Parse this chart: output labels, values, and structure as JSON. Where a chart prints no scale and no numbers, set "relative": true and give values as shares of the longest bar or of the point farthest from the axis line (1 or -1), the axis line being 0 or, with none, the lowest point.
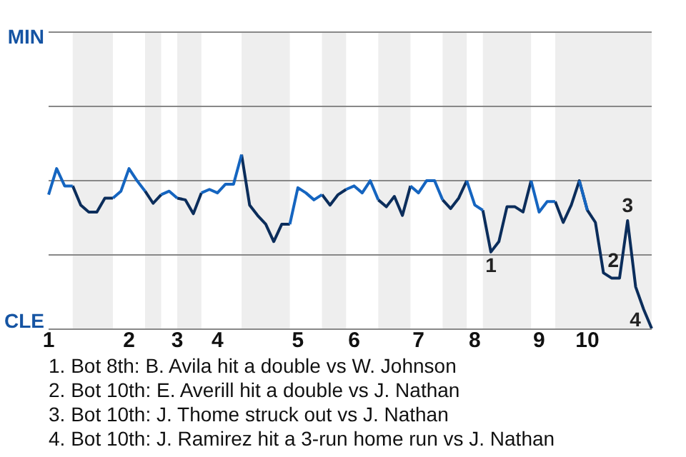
{
  "chart_data": {
    "type": "line",
    "relative": true,
    "categories": [
      "1",
      null,
      null,
      null,
      null,
      null,
      null,
      null,
      null,
      null,
      "2",
      null,
      null,
      null,
      null,
      null,
      "3",
      null,
      null,
      null,
      null,
      "4",
      null,
      null,
      null,
      null,
      null,
      null,
      null,
      null,
      null,
      "5",
      null,
      null,
      null,
      null,
      null,
      null,
      "6",
      null,
      null,
      null,
      null,
      null,
      null,
      null,
      "7",
      null,
      null,
      null,
      null,
      null,
      null,
      "8",
      null,
      null,
      null,
      null,
      null,
      null,
      null,
      "9",
      null,
      null,
      null,
      null,
      null,
      "10",
      null,
      null,
      null,
      null,
      null,
      null,
      null,
      null
    ],
    "legend": false,
    "marker": "none",
    "line_style": "solid",
    "series": [
      {
        "color": "#1565c0",
        "values": [
          0.77,
          0.92,
          0.82,
          0.82,
          null,
          null,
          null,
          null,
          0.75,
          0.79,
          0.92,
          0.85,
          0.79,
          null,
          0.77,
          0.79,
          0.75,
          null,
          null,
          0.78,
          0.8,
          0.78,
          0.83,
          0.83,
          1,
          null,
          null,
          null,
          null,
          null,
          0.6,
          0.81,
          0.78,
          0.74,
          0.77,
          null,
          null,
          0.8,
          0.82,
          0.78,
          0.85,
          0.74,
          null,
          null,
          null,
          0.82,
          0.78,
          0.85,
          0.85,
          0.74,
          null,
          null,
          0.85,
          0.71,
          0.68,
          null,
          null,
          null,
          null,
          null,
          0.85,
          0.67,
          0.73,
          0.73,
          null,
          null,
          0.85,
          0.68,
          null,
          null,
          null,
          null,
          null,
          null,
          null,
          null
        ]
      },
      {
        "color": "#0b2d5b",
        "values": [
          null,
          null,
          null,
          0.82,
          0.71,
          0.67,
          0.67,
          0.75,
          0.75,
          null,
          null,
          null,
          0.79,
          0.72,
          0.77,
          null,
          0.75,
          0.74,
          0.66,
          0.78,
          null,
          null,
          null,
          null,
          1,
          0.71,
          0.65,
          0.6,
          0.5,
          0.6,
          0.6,
          null,
          null,
          null,
          0.77,
          0.71,
          0.77,
          0.8,
          null,
          null,
          null,
          0.74,
          0.7,
          0.76,
          0.65,
          0.82,
          null,
          null,
          null,
          0.74,
          0.69,
          0.75,
          0.85,
          null,
          0.68,
          0.44,
          0.5,
          0.7,
          0.7,
          0.67,
          0.85,
          null,
          null,
          0.73,
          0.61,
          0.71,
          0.85,
          0.68,
          0.61,
          0.32,
          0.29,
          0.29,
          0.62,
          0.24,
          0.11,
          0
        ]
      }
    ],
    "ref_lines": [
      {
        "axis": "y",
        "value": 0,
        "label": "CLE",
        "color": "#888888"
      },
      {
        "axis": "y",
        "value": 0.427,
        "label": null,
        "color": "#888888"
      },
      {
        "axis": "y",
        "value": 0.855,
        "label": null,
        "color": "#888888"
      },
      {
        "axis": "y",
        "value": 1.282,
        "label": null,
        "color": "#888888"
      },
      {
        "axis": "y",
        "value": 1.709,
        "label": "MIN",
        "color": "#888888"
      }
    ],
    "annotations": [
      {
        "text": "1",
        "y": 0.44
      },
      {
        "text": "2",
        "y": 0.32
      },
      {
        "text": "3",
        "y": 0.62
      },
      {
        "text": "4",
        "y": 0.11
      },
      "1. Bot 8th: B. Avila hit a double vs W. Johnson",
      "2. Bot 10th: E. Averill hit a double vs J. Nathan",
      "3. Bot 10th: J. Thome struck out vs J. Nathan",
      "4. Bot 10th: J. Ramirez hit a 3-run home run vs J. Nathan"
    ]
  }
}
